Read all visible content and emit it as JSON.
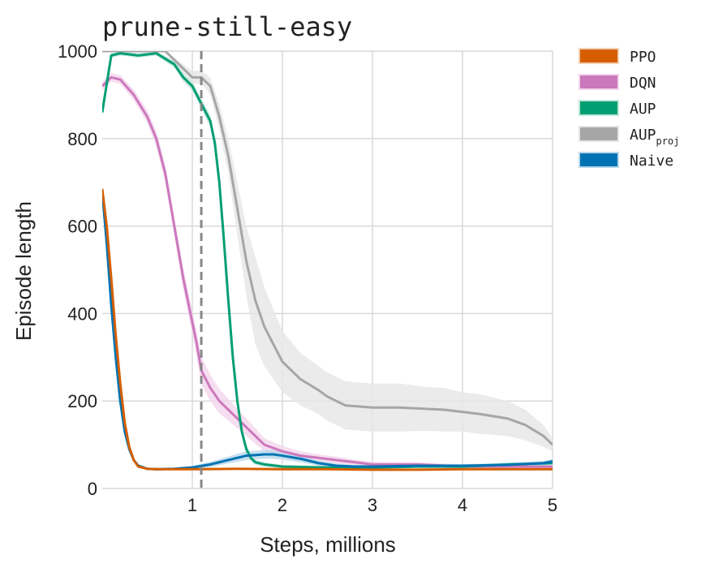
{
  "chart_data": {
    "type": "line",
    "title": "prune-still-easy",
    "xlabel": "Steps, millions",
    "ylabel": "Episode length",
    "xlim": [
      0,
      5
    ],
    "ylim": [
      0,
      1000
    ],
    "xticks": [
      1,
      2,
      3,
      4,
      5
    ],
    "yticks": [
      0,
      200,
      400,
      600,
      800,
      1000
    ],
    "grid": true,
    "legend_position": "right",
    "vline_x": 1.1,
    "legend": [
      {
        "key": "ppo",
        "label": "PPO",
        "label_sub": ""
      },
      {
        "key": "dqn",
        "label": "DQN",
        "label_sub": ""
      },
      {
        "key": "aup",
        "label": "AUP",
        "label_sub": ""
      },
      {
        "key": "aupproj",
        "label": "AUP",
        "label_sub": "proj"
      },
      {
        "key": "naive",
        "label": "Naive",
        "label_sub": ""
      }
    ],
    "series": [
      {
        "key": "aupproj",
        "color": "#a6a6a6",
        "band_color": "#e6e6e6",
        "x": [
          0.0,
          0.5,
          0.7,
          0.9,
          1.0,
          1.1,
          1.2,
          1.3,
          1.4,
          1.5,
          1.6,
          1.7,
          1.8,
          1.9,
          2.0,
          2.2,
          2.4,
          2.5,
          2.7,
          3.0,
          3.3,
          3.6,
          3.8,
          4.0,
          4.2,
          4.5,
          4.7,
          4.9,
          5.0
        ],
        "y": [
          1000,
          1000,
          1000,
          960,
          940,
          940,
          920,
          850,
          760,
          640,
          520,
          430,
          370,
          330,
          290,
          250,
          225,
          210,
          190,
          185,
          185,
          182,
          180,
          175,
          170,
          160,
          145,
          120,
          100
        ],
        "band": [
          0,
          0,
          0,
          10,
          15,
          15,
          20,
          30,
          40,
          60,
          80,
          100,
          90,
          80,
          70,
          60,
          55,
          55,
          55,
          55,
          55,
          50,
          50,
          45,
          45,
          40,
          35,
          25,
          15
        ]
      },
      {
        "key": "dqn",
        "color": "#cc78bc",
        "band_color": "#f2d6ec",
        "x": [
          0.0,
          0.1,
          0.2,
          0.35,
          0.5,
          0.6,
          0.7,
          0.8,
          0.9,
          1.0,
          1.05,
          1.1,
          1.2,
          1.3,
          1.4,
          1.5,
          1.6,
          1.7,
          1.8,
          2.0,
          2.2,
          2.4,
          2.6,
          2.8,
          3.0,
          3.5,
          4.0,
          4.5,
          5.0
        ],
        "y": [
          920,
          940,
          935,
          900,
          850,
          800,
          720,
          600,
          480,
          380,
          330,
          270,
          230,
          200,
          180,
          160,
          140,
          120,
          100,
          85,
          75,
          70,
          65,
          60,
          55,
          55,
          50,
          50,
          50
        ],
        "band": [
          10,
          10,
          10,
          12,
          15,
          18,
          20,
          22,
          25,
          28,
          30,
          32,
          30,
          28,
          25,
          22,
          20,
          18,
          15,
          12,
          10,
          8,
          8,
          6,
          6,
          5,
          5,
          5,
          5
        ]
      },
      {
        "key": "aup",
        "color": "#029e73",
        "band_color": "#bfe6d9",
        "x": [
          0.0,
          0.1,
          0.2,
          0.4,
          0.6,
          0.8,
          0.9,
          1.0,
          1.1,
          1.2,
          1.25,
          1.3,
          1.35,
          1.4,
          1.45,
          1.5,
          1.55,
          1.6,
          1.65,
          1.7,
          1.8,
          2.0,
          2.5,
          3.0,
          3.5,
          4.0,
          4.5,
          5.0
        ],
        "y": [
          860,
          990,
          995,
          990,
          995,
          970,
          940,
          920,
          880,
          840,
          790,
          700,
          570,
          430,
          300,
          200,
          130,
          90,
          70,
          60,
          55,
          50,
          48,
          48,
          50,
          50,
          55,
          58
        ],
        "band": [
          10,
          5,
          5,
          5,
          5,
          8,
          10,
          10,
          12,
          14,
          16,
          18,
          20,
          20,
          18,
          15,
          12,
          10,
          8,
          6,
          5,
          4,
          3,
          3,
          3,
          3,
          4,
          4
        ]
      },
      {
        "key": "naive",
        "color": "#0173b2",
        "band_color": "#b9d8ec",
        "x": [
          0.0,
          0.05,
          0.1,
          0.15,
          0.2,
          0.25,
          0.3,
          0.35,
          0.4,
          0.5,
          0.6,
          0.8,
          1.0,
          1.2,
          1.4,
          1.6,
          1.8,
          1.9,
          2.0,
          2.2,
          2.4,
          2.6,
          2.8,
          3.0,
          3.5,
          4.0,
          4.5,
          4.9,
          5.0
        ],
        "y": [
          680,
          560,
          420,
          300,
          200,
          130,
          90,
          65,
          52,
          45,
          44,
          45,
          48,
          55,
          65,
          75,
          78,
          78,
          75,
          68,
          58,
          52,
          50,
          50,
          52,
          52,
          54,
          58,
          62
        ],
        "band": [
          10,
          10,
          10,
          10,
          8,
          6,
          5,
          4,
          3,
          3,
          3,
          3,
          4,
          6,
          8,
          10,
          10,
          10,
          9,
          8,
          6,
          5,
          4,
          4,
          4,
          4,
          4,
          5,
          5
        ]
      },
      {
        "key": "ppo",
        "color": "#d55e00",
        "band_color": "#f2cfb3",
        "x": [
          0.0,
          0.05,
          0.1,
          0.15,
          0.2,
          0.25,
          0.3,
          0.35,
          0.4,
          0.5,
          0.6,
          0.8,
          1.0,
          1.5,
          2.0,
          2.5,
          3.0,
          3.5,
          4.0,
          4.5,
          5.0
        ],
        "y": [
          685,
          600,
          480,
          350,
          240,
          150,
          95,
          65,
          50,
          45,
          44,
          44,
          44,
          45,
          44,
          44,
          43,
          43,
          44,
          44,
          44
        ],
        "band": [
          8,
          8,
          8,
          8,
          7,
          6,
          5,
          4,
          3,
          2,
          2,
          2,
          2,
          2,
          2,
          2,
          2,
          2,
          2,
          2,
          2
        ]
      }
    ]
  }
}
